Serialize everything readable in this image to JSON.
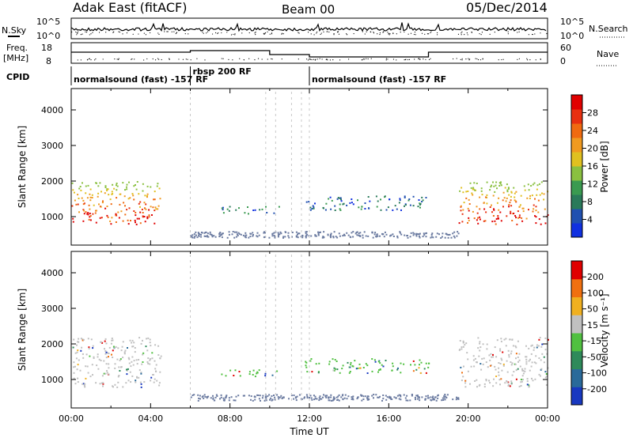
{
  "header": {
    "station": "Adak East (fitACF)",
    "beam": "Beam 00",
    "date": "05/Dec/2014"
  },
  "noise_panel": {
    "left_label": "N.Sky",
    "right_label": "N.Search",
    "left_ticks": [
      "10^5",
      "10^0"
    ],
    "right_ticks": [
      "10^5",
      "10^0"
    ]
  },
  "freq_panel": {
    "left_label": "Freq.",
    "left_unit": "[MHz]",
    "right_label": "Nave",
    "left_ticks": [
      "18",
      "8"
    ],
    "right_ticks": [
      "60",
      "0"
    ]
  },
  "cpid": {
    "label": "CPID",
    "segments": [
      {
        "label": "normalsound (fast) -157 RF",
        "start_h": 0.0,
        "end_h": 6.0
      },
      {
        "label": "rbsp 200 RF",
        "start_h": 6.0,
        "end_h": 12.0
      },
      {
        "label": "normalsound (fast) -157 RF",
        "start_h": 12.0,
        "end_h": 24.0
      }
    ]
  },
  "colorbars": {
    "power": {
      "label": "Power [dB]",
      "ticks": [
        "28",
        "24",
        "20",
        "16",
        "12",
        "8",
        "4"
      ],
      "colors": [
        "#1030e0",
        "#2050b0",
        "#2a7a5a",
        "#3a9a50",
        "#8ac040",
        "#e0c020",
        "#f09a20",
        "#f06a10",
        "#e83010",
        "#e00000"
      ]
    },
    "velocity": {
      "label": "Velocity [m s⁻¹]",
      "ticks": [
        "200",
        "100",
        "50",
        "15",
        "-15",
        "-50",
        "-100",
        "-200"
      ],
      "colors": [
        "#1838c0",
        "#2a6a9a",
        "#2e8a5a",
        "#50c040",
        "#c0c0c0",
        "#f0b020",
        "#f07010",
        "#e00000"
      ]
    }
  },
  "chart_data": [
    {
      "type": "heatmap",
      "title": "Power",
      "ylabel": "Slant Range [km]",
      "xlabel": "",
      "xlim": [
        0,
        24
      ],
      "ylim": [
        200,
        4600
      ],
      "yticks": [
        "4000",
        "3000",
        "2000",
        "1000"
      ],
      "echo_regions": [
        {
          "t0": 0.0,
          "t1": 4.5,
          "r0": 800,
          "r1": 2000,
          "value_db": 24
        },
        {
          "t0": 7.5,
          "t1": 10.5,
          "r0": 1100,
          "r1": 1300,
          "value_db": 8
        },
        {
          "t0": 11.7,
          "t1": 18.0,
          "r0": 1200,
          "r1": 1600,
          "value_db": 10
        },
        {
          "t0": 19.5,
          "t1": 24.0,
          "r0": 800,
          "r1": 2000,
          "value_db": 24
        }
      ]
    },
    {
      "type": "heatmap",
      "title": "Velocity",
      "ylabel": "Slant Range [km]",
      "xlabel": "Time UT",
      "xlim": [
        0,
        24
      ],
      "ylim": [
        200,
        4600
      ],
      "xticks": [
        "00:00",
        "04:00",
        "08:00",
        "12:00",
        "16:00",
        "20:00",
        "00:00"
      ],
      "yticks": [
        "4000",
        "3000",
        "2000",
        "1000"
      ],
      "echo_regions": [
        {
          "t0": 0.0,
          "t1": 4.5,
          "r0": 800,
          "r1": 2200,
          "velocity": 0
        },
        {
          "t0": 7.5,
          "t1": 10.5,
          "r0": 1100,
          "r1": 1300,
          "velocity": 30
        },
        {
          "t0": 11.7,
          "t1": 18.0,
          "r0": 1200,
          "r1": 1600,
          "velocity": 30
        },
        {
          "t0": 19.5,
          "t1": 24.0,
          "r0": 800,
          "r1": 2200,
          "velocity": 0
        }
      ]
    }
  ]
}
